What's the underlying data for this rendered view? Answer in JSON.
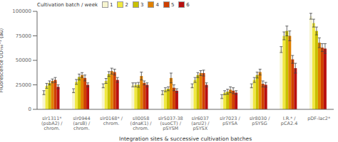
{
  "chart_data": {
    "type": "bar",
    "title": "",
    "xlabel": "Integration sites & successive cultivation batches",
    "ylabel": "Fluorescence OD₇₅₀⁻¹ (au)",
    "legend_title": "Cultivation batch / week",
    "categories": [
      "slr1311*\n(psbA2) /\nchrom.",
      "slr0944\n(arsB) /\nchrom.",
      "slr0168* /\nchrom.",
      "sll0058\n(dnaK1) /\nchrom.",
      "slr5037-38\n(suoCT) /\npSYSM",
      "slr6037\n(arsl2) /\npSYSX",
      "slr7023 /\npSYSA",
      "slr8030 /\npSYSG",
      "I.R.* /\npCA2.4",
      "pDF-lac2*"
    ],
    "series": [
      {
        "name": "1",
        "color": "#f7f5d0",
        "values": [
          17000,
          19000,
          24000,
          25000,
          17000,
          24000,
          13000,
          24000,
          61000,
          95000
        ],
        "errors": [
          2000,
          2000,
          2000,
          2000,
          2000,
          2000,
          2000,
          2000,
          3000,
          3000
        ]
      },
      {
        "name": "2",
        "color": "#f0e840",
        "values": [
          24000,
          28000,
          29000,
          25000,
          20000,
          30000,
          17000,
          30000,
          75000,
          88000
        ],
        "errors": [
          2500,
          2500,
          2500,
          2000,
          2000,
          2500,
          2000,
          2500,
          4000,
          4000
        ]
      },
      {
        "name": "3",
        "color": "#c8c000",
        "values": [
          27000,
          33000,
          36000,
          25000,
          21000,
          35000,
          18000,
          35000,
          80000,
          80000
        ],
        "errors": [
          2000,
          3000,
          2500,
          2500,
          2000,
          2500,
          2500,
          3000,
          5000,
          4000
        ]
      },
      {
        "name": "4",
        "color": "#e08000",
        "values": [
          29000,
          35000,
          39000,
          34000,
          32000,
          37000,
          20000,
          38000,
          75000,
          68000
        ],
        "errors": [
          2000,
          2500,
          3000,
          4000,
          5000,
          2500,
          3000,
          3000,
          5000,
          5000
        ]
      },
      {
        "name": "5",
        "color": "#d04000",
        "values": [
          30000,
          32000,
          38000,
          27000,
          22000,
          37000,
          19000,
          26000,
          51000,
          63000
        ],
        "errors": [
          2500,
          3000,
          3000,
          2000,
          3000,
          3000,
          3000,
          3000,
          4000,
          4000
        ]
      },
      {
        "name": "6",
        "color": "#b81010",
        "values": [
          23000,
          25000,
          30000,
          25000,
          19000,
          25000,
          17000,
          25000,
          42000,
          62000
        ],
        "errors": [
          2000,
          2000,
          2500,
          2000,
          2000,
          2000,
          2000,
          2500,
          5000,
          5000
        ]
      }
    ],
    "ylim": [
      0,
      100000
    ],
    "yticks": [
      0,
      25000,
      50000,
      75000,
      100000
    ],
    "grid": false,
    "legend": "upper left"
  }
}
